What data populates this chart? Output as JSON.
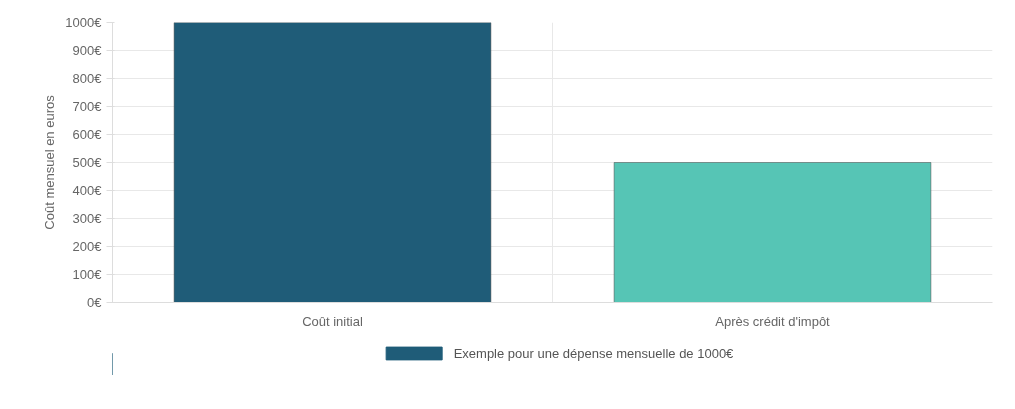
{
  "chart_data": {
    "type": "bar",
    "ylabel": "Coût mensuel en euros",
    "categories": [
      "Coût initial",
      "Après crédit d'impôt"
    ],
    "series": [
      {
        "name": "Exemple pour une dépense mensuelle de 1000€",
        "color": "#1f5c78",
        "colors": [
          "#1f5c78",
          "#56c5b5"
        ],
        "values": [
          1000,
          500
        ]
      }
    ],
    "ylim": [
      0,
      1000
    ],
    "yticks": [
      {
        "value": 0,
        "label": "0€"
      },
      {
        "value": 100,
        "label": "100€"
      },
      {
        "value": 200,
        "label": "200€"
      },
      {
        "value": 300,
        "label": "300€"
      },
      {
        "value": 400,
        "label": "400€"
      },
      {
        "value": 500,
        "label": "500€"
      },
      {
        "value": 600,
        "label": "600€"
      },
      {
        "value": 700,
        "label": "700€"
      },
      {
        "value": 800,
        "label": "800€"
      },
      {
        "value": 900,
        "label": "900€"
      },
      {
        "value": 1000,
        "label": "1000€"
      }
    ],
    "grid": true,
    "legend": "bottom"
  }
}
